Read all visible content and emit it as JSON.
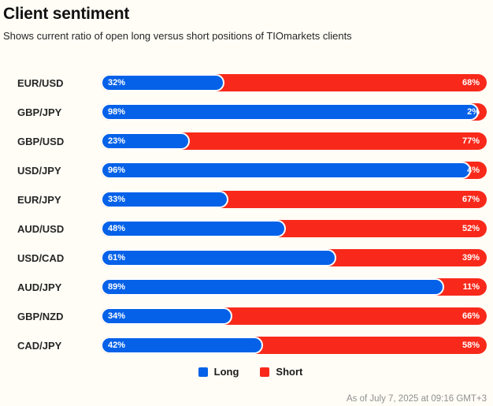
{
  "header": {
    "title": "Client sentiment",
    "subtitle": "Shows current ratio of open long versus short positions of TIOmarkets clients"
  },
  "colors": {
    "long": "#0561e8",
    "short": "#f8291a",
    "background": "#fffdf6",
    "label_text": "#262626",
    "pct_text": "#ffffff",
    "footer_text": "#8f8f8f"
  },
  "legend": {
    "items": [
      {
        "label": "Long",
        "color": "#0561e8"
      },
      {
        "label": "Short",
        "color": "#f8291a"
      }
    ]
  },
  "chart_data": {
    "type": "bar",
    "orientation": "horizontal-stacked",
    "title": "Client sentiment",
    "categories": [
      "EUR/USD",
      "GBP/JPY",
      "GBP/USD",
      "USD/JPY",
      "EUR/JPY",
      "AUD/USD",
      "USD/CAD",
      "AUD/JPY",
      "GBP/NZD",
      "CAD/JPY"
    ],
    "series": [
      {
        "name": "Long",
        "values": [
          32,
          98,
          23,
          96,
          33,
          48,
          61,
          89,
          34,
          42
        ]
      },
      {
        "name": "Short",
        "values": [
          68,
          2,
          77,
          4,
          67,
          52,
          39,
          11,
          66,
          58
        ]
      }
    ],
    "value_suffix": "%",
    "xlim": [
      0,
      100
    ],
    "grid": false,
    "legend_position": "bottom",
    "data_labels": "inside-both-ends"
  },
  "footer": {
    "as_of": "As of July 7, 2025 at 09:16 GMT+3"
  }
}
